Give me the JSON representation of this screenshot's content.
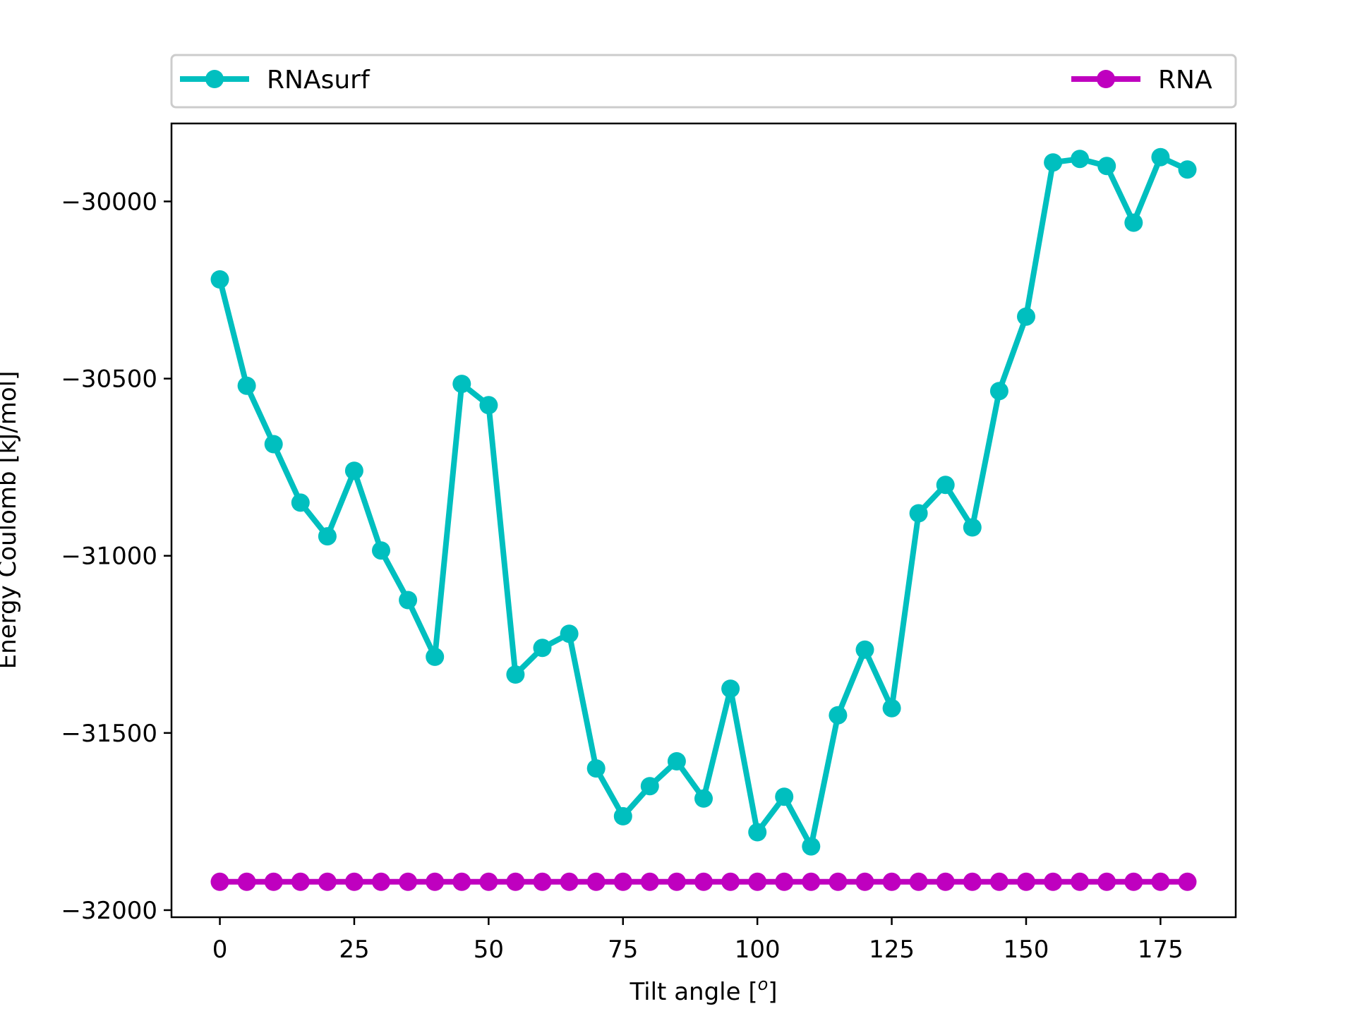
{
  "chart_data": {
    "type": "line",
    "xlabel": "Tilt angle [",
    "xlabel_sup": "o",
    "xlabel_end": "]",
    "ylabel": "Energy Coulomb [kJ/mol]",
    "xlim": [
      -9,
      189
    ],
    "ylim": [
      -32020,
      -29780
    ],
    "x_ticks": [
      0,
      25,
      50,
      75,
      100,
      125,
      150,
      175
    ],
    "y_ticks": [
      -30000,
      -30500,
      -31000,
      -31500,
      -32000
    ],
    "y_tick_labels": [
      "−30000",
      "−30500",
      "−31000",
      "−31500",
      "−32000"
    ],
    "legend_position": "top, outside plot, expanded",
    "x": [
      0,
      5,
      10,
      15,
      20,
      25,
      30,
      35,
      40,
      45,
      50,
      55,
      60,
      65,
      70,
      75,
      80,
      85,
      90,
      95,
      100,
      105,
      110,
      115,
      120,
      125,
      130,
      135,
      140,
      145,
      150,
      155,
      160,
      165,
      170,
      175,
      180
    ],
    "series": [
      {
        "name": "RNAsurf",
        "color": "#00bfbf",
        "values": [
          -30220,
          -30520,
          -30685,
          -30850,
          -30945,
          -30760,
          -30985,
          -31125,
          -31285,
          -30515,
          -30575,
          -31335,
          -31260,
          -31220,
          -31600,
          -31735,
          -31650,
          -31580,
          -31685,
          -31375,
          -31780,
          -31680,
          -31820,
          -31450,
          -31265,
          -31430,
          -30880,
          -30800,
          -30920,
          -30535,
          -30325,
          -29890,
          -29880,
          -29900,
          -30060,
          -29875,
          -29910
        ]
      },
      {
        "name": "RNA",
        "color": "#bf00bf",
        "values": [
          -31920,
          -31920,
          -31920,
          -31920,
          -31920,
          -31920,
          -31920,
          -31920,
          -31920,
          -31920,
          -31920,
          -31920,
          -31920,
          -31920,
          -31920,
          -31920,
          -31920,
          -31920,
          -31920,
          -31920,
          -31920,
          -31920,
          -31920,
          -31920,
          -31920,
          -31920,
          -31920,
          -31920,
          -31920,
          -31920,
          -31920,
          -31920,
          -31920,
          -31920,
          -31920,
          -31920,
          -31920
        ]
      }
    ]
  }
}
